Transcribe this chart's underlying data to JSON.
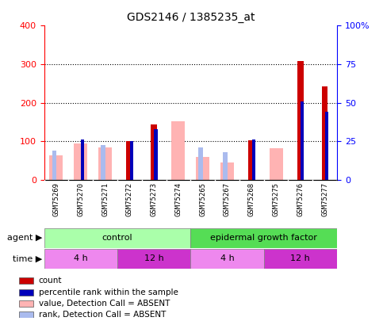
{
  "title": "GDS2146 / 1385235_at",
  "samples": [
    "GSM75269",
    "GSM75270",
    "GSM75271",
    "GSM75272",
    "GSM75273",
    "GSM75274",
    "GSM75265",
    "GSM75267",
    "GSM75268",
    "GSM75275",
    "GSM75276",
    "GSM75277"
  ],
  "count_values": [
    0,
    0,
    0,
    100,
    143,
    0,
    0,
    0,
    103,
    0,
    308,
    242
  ],
  "percentile_rank_scaled": [
    0,
    104,
    0,
    100,
    132,
    0,
    0,
    0,
    104,
    0,
    204,
    176
  ],
  "absent_value": [
    63,
    95,
    83,
    0,
    0,
    152,
    60,
    44,
    0,
    82,
    0,
    0
  ],
  "absent_rank_scaled": [
    76,
    0,
    90,
    0,
    0,
    0,
    84,
    72,
    0,
    0,
    0,
    0
  ],
  "ylim_left": [
    0,
    400
  ],
  "ylim_right": [
    0,
    100
  ],
  "yticks_left": [
    0,
    100,
    200,
    300,
    400
  ],
  "yticks_right": [
    0,
    25,
    50,
    75,
    100
  ],
  "ytick_labels_left": [
    "0",
    "100",
    "200",
    "300",
    "400"
  ],
  "ytick_labels_right": [
    "0",
    "25",
    "50",
    "75",
    "100%"
  ],
  "color_count": "#cc0000",
  "color_percentile": "#0000bb",
  "color_absent_value": "#ffb3b3",
  "color_absent_rank": "#aabbee",
  "agent_color_light": "#aaffaa",
  "agent_color_dark": "#55dd55",
  "time_color_light": "#ee88ee",
  "time_color_dark": "#cc33cc",
  "bg_gray": "#d8d8d8",
  "legend_items": [
    {
      "label": "count",
      "color": "#cc0000"
    },
    {
      "label": "percentile rank within the sample",
      "color": "#0000bb"
    },
    {
      "label": "value, Detection Call = ABSENT",
      "color": "#ffb3b3"
    },
    {
      "label": "rank, Detection Call = ABSENT",
      "color": "#aabbee"
    }
  ]
}
